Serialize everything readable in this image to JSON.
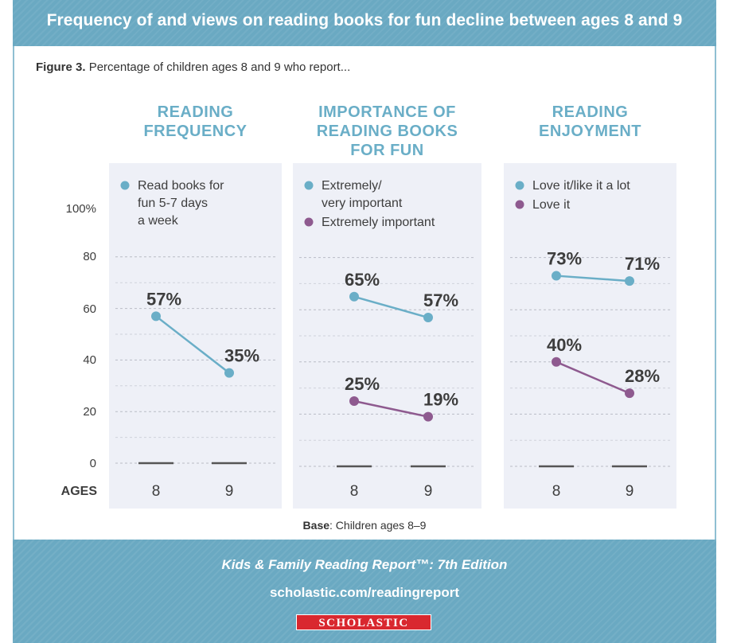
{
  "header": {
    "title": "Frequency of and views on reading books for fun decline between ages 8 and 9"
  },
  "caption": {
    "figure_label": "Figure 3.",
    "text": "Percentage of children ages 8 and 9 who report..."
  },
  "y_axis": {
    "ticks": [
      "100%",
      "80",
      "60",
      "40",
      "20",
      "0"
    ],
    "ages_label": "AGES"
  },
  "base_note": {
    "label": "Base",
    "text": ": Children ages 8–9"
  },
  "footer": {
    "report": "Kids & Family Reading Report™: 7th Edition",
    "url": "scholastic.com/readingreport",
    "logo": "SCHOLASTIC"
  },
  "colors": {
    "blue": "#6aaec7",
    "purple": "#8e5a8f",
    "panel": "#eef0f7",
    "header": "#6aa9c2"
  },
  "chart_data": [
    {
      "type": "line",
      "title": [
        "READING",
        "FREQUENCY"
      ],
      "categories": [
        "8",
        "9"
      ],
      "ylim": [
        0,
        100
      ],
      "series": [
        {
          "name_lines": [
            "Read books for",
            "fun 5-7 days",
            "a week"
          ],
          "color": "#6aaec7",
          "values": [
            57,
            35
          ],
          "labels": [
            "57%",
            "35%"
          ]
        }
      ]
    },
    {
      "type": "line",
      "title": [
        "IMPORTANCE OF",
        "READING BOOKS",
        "FOR FUN"
      ],
      "categories": [
        "8",
        "9"
      ],
      "ylim": [
        0,
        100
      ],
      "series": [
        {
          "name_lines": [
            "Extremely/",
            "very important"
          ],
          "color": "#6aaec7",
          "values": [
            65,
            57
          ],
          "labels": [
            "65%",
            "57%"
          ]
        },
        {
          "name_lines": [
            "Extremely important"
          ],
          "color": "#8e5a8f",
          "values": [
            25,
            19
          ],
          "labels": [
            "25%",
            "19%"
          ]
        }
      ]
    },
    {
      "type": "line",
      "title": [
        "READING",
        "ENJOYMENT"
      ],
      "categories": [
        "8",
        "9"
      ],
      "ylim": [
        0,
        100
      ],
      "series": [
        {
          "name_lines": [
            "Love it/like it a lot"
          ],
          "color": "#6aaec7",
          "values": [
            73,
            71
          ],
          "labels": [
            "73%",
            "71%"
          ]
        },
        {
          "name_lines": [
            "Love it"
          ],
          "color": "#8e5a8f",
          "values": [
            40,
            28
          ],
          "labels": [
            "40%",
            "28%"
          ]
        }
      ]
    }
  ]
}
